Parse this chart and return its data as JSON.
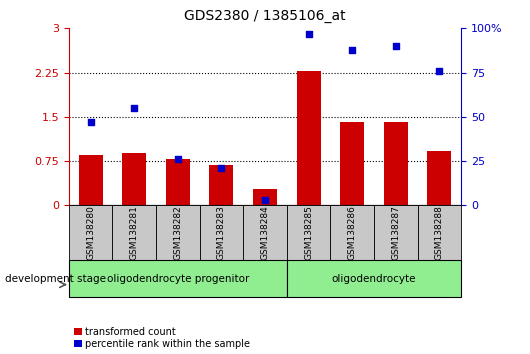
{
  "title": "GDS2380 / 1385106_at",
  "samples": [
    "GSM138280",
    "GSM138281",
    "GSM138282",
    "GSM138283",
    "GSM138284",
    "GSM138285",
    "GSM138286",
    "GSM138287",
    "GSM138288"
  ],
  "transformed_count": [
    0.85,
    0.88,
    0.78,
    0.68,
    0.28,
    2.28,
    1.42,
    1.41,
    0.92
  ],
  "percentile_rank": [
    47,
    55,
    26,
    21,
    3,
    97,
    88,
    90,
    76
  ],
  "ylim_left": [
    0,
    3
  ],
  "ylim_right": [
    0,
    100
  ],
  "yticks_left": [
    0,
    0.75,
    1.5,
    2.25,
    3
  ],
  "yticks_right": [
    0,
    25,
    50,
    75,
    100
  ],
  "ytick_labels_left": [
    "0",
    "0.75",
    "1.5",
    "2.25",
    "3"
  ],
  "ytick_labels_right": [
    "0",
    "25",
    "50",
    "75",
    "100%"
  ],
  "group1_label": "oligodendrocyte progenitor",
  "group1_n": 5,
  "group2_label": "oligodendrocyte",
  "group2_n": 4,
  "group_color": "#90EE90",
  "bar_color": "#CC0000",
  "dot_color": "#0000CC",
  "tick_area_color": "#C8C8C8",
  "left_axis_color": "#CC0000",
  "right_axis_color": "#0000CC",
  "legend_tc": "transformed count",
  "legend_pr": "percentile rank within the sample",
  "dev_stage_label": "development stage"
}
